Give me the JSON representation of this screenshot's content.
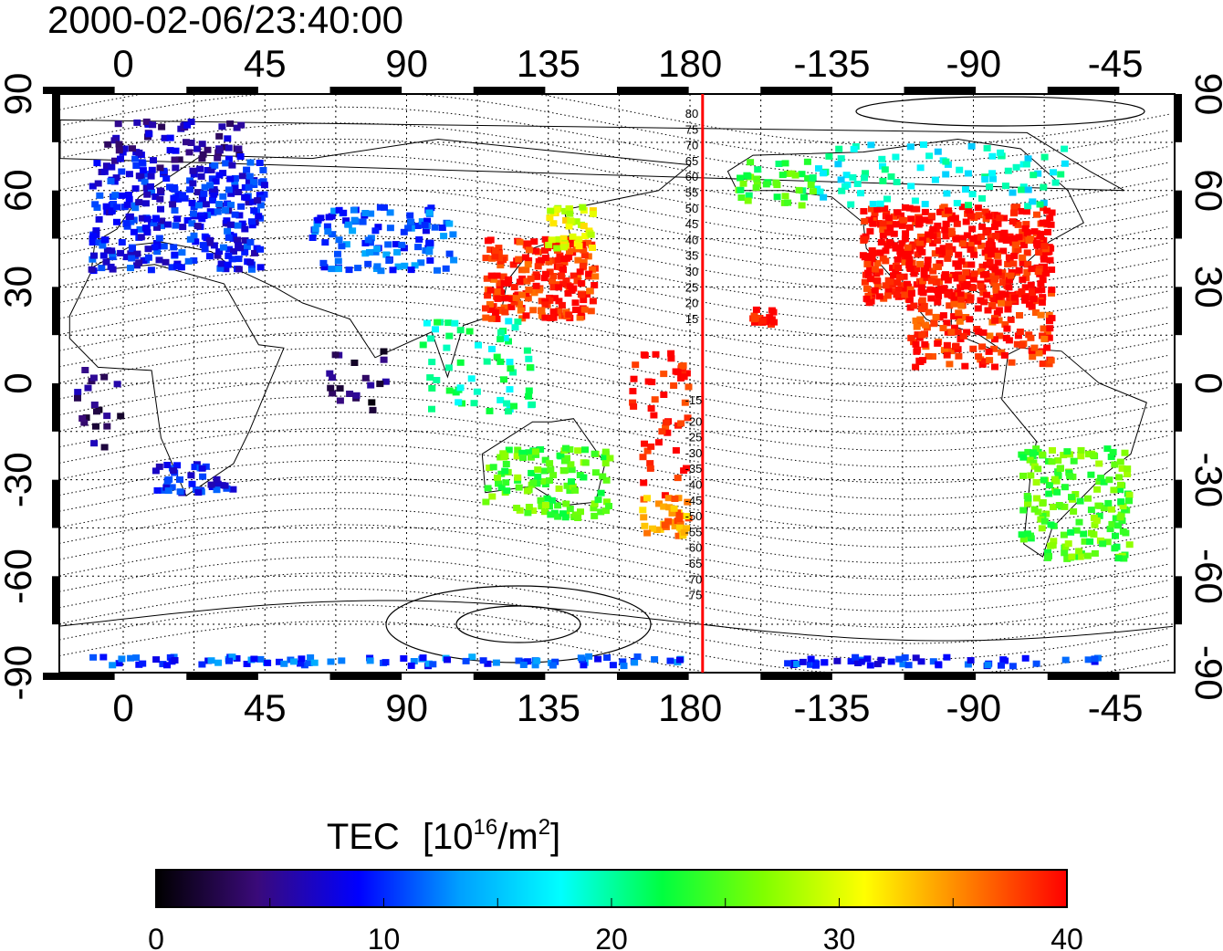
{
  "title": "2000-02-06/23:40:00",
  "axes": {
    "x_ticks": [
      "0",
      "45",
      "90",
      "135",
      "180",
      "-135",
      "-90",
      "-45"
    ],
    "y_ticks": [
      "90",
      "60",
      "30",
      "0",
      "-30",
      "-60",
      "-90"
    ]
  },
  "contour_labels_north": [
    "80",
    "75",
    "70",
    "65",
    "60",
    "55",
    "50",
    "45",
    "40",
    "35",
    "30",
    "25",
    "20",
    "15"
  ],
  "contour_labels_south": [
    "-15",
    "-20",
    "-25",
    "-30",
    "-35",
    "-40",
    "-45",
    "-50",
    "-55",
    "-60",
    "-65",
    "-70",
    "-75"
  ],
  "terminator": {
    "longitude": 184,
    "color": "#ff0000"
  },
  "colorbar": {
    "title": "TEC",
    "unit_open": "[10",
    "unit_exp": "16",
    "unit_mid": "/m",
    "unit_exp2": "2",
    "unit_close": "]",
    "min": 0,
    "max": 40,
    "tick_labels": [
      "0",
      "10",
      "20",
      "30",
      "40"
    ],
    "stops": [
      "#000000",
      "#3a0a7a",
      "#0000ff",
      "#00a0ff",
      "#00ffff",
      "#00ff40",
      "#80ff00",
      "#ffff00",
      "#ff8000",
      "#ff0000"
    ]
  },
  "tec_regions": [
    {
      "name": "europe",
      "lon": [
        -10,
        45
      ],
      "lat": [
        35,
        70
      ],
      "tec": 9,
      "n": 320
    },
    {
      "name": "europe-north",
      "lon": [
        -5,
        40
      ],
      "lat": [
        66,
        82
      ],
      "tec": 6,
      "n": 60
    },
    {
      "name": "central-asia",
      "lon": [
        60,
        105
      ],
      "lat": [
        35,
        55
      ],
      "tec": 11,
      "n": 110
    },
    {
      "name": "japan-china",
      "lon": [
        115,
        150
      ],
      "lat": [
        20,
        45
      ],
      "tec": 39,
      "n": 220
    },
    {
      "name": "japan-north",
      "lon": [
        135,
        150
      ],
      "lat": [
        42,
        55
      ],
      "tec": 30,
      "n": 40
    },
    {
      "name": "se-asia",
      "lon": [
        95,
        130
      ],
      "lat": [
        -10,
        20
      ],
      "tec": 20,
      "n": 60
    },
    {
      "name": "pacific-w",
      "lon": [
        160,
        180
      ],
      "lat": [
        -35,
        10
      ],
      "tec": 40,
      "n": 50
    },
    {
      "name": "australia",
      "lon": [
        115,
        155
      ],
      "lat": [
        -42,
        -20
      ],
      "tec": 25,
      "n": 120
    },
    {
      "name": "new-zealand",
      "lon": [
        165,
        180
      ],
      "lat": [
        -48,
        -35
      ],
      "tec": 35,
      "n": 40
    },
    {
      "name": "south-africa",
      "lon": [
        10,
        35
      ],
      "lat": [
        -35,
        -25
      ],
      "tec": 9,
      "n": 40
    },
    {
      "name": "west-africa",
      "lon": [
        -15,
        0
      ],
      "lat": [
        -20,
        5
      ],
      "tec": 4,
      "n": 20
    },
    {
      "name": "indian-ocean",
      "lon": [
        65,
        85
      ],
      "lat": [
        -10,
        10
      ],
      "tec": 3,
      "n": 20
    },
    {
      "name": "north-america",
      "lon": [
        -125,
        -65
      ],
      "lat": [
        25,
        55
      ],
      "tec": 40,
      "n": 520
    },
    {
      "name": "canada",
      "lon": [
        -140,
        -60
      ],
      "lat": [
        55,
        75
      ],
      "tec": 18,
      "n": 90
    },
    {
      "name": "alaska",
      "lon": [
        -165,
        -140
      ],
      "lat": [
        55,
        70
      ],
      "tec": 24,
      "n": 40
    },
    {
      "name": "mexico-caribbean",
      "lon": [
        -110,
        -65
      ],
      "lat": [
        5,
        25
      ],
      "tec": 39,
      "n": 140
    },
    {
      "name": "hawaii",
      "lon": [
        -160,
        -153
      ],
      "lat": [
        18,
        23
      ],
      "tec": 40,
      "n": 20
    },
    {
      "name": "south-america",
      "lon": [
        -75,
        -40
      ],
      "lat": [
        -55,
        -20
      ],
      "tec": 25,
      "n": 170
    },
    {
      "name": "antarctica-band",
      "lon": [
        -15,
        180
      ],
      "lat": [
        -88,
        -85
      ],
      "tec": 11,
      "n": 90
    },
    {
      "name": "antarctica-band-w",
      "lon": [
        -150,
        -45
      ],
      "lat": [
        -88,
        -85
      ],
      "tec": 10,
      "n": 50
    }
  ]
}
